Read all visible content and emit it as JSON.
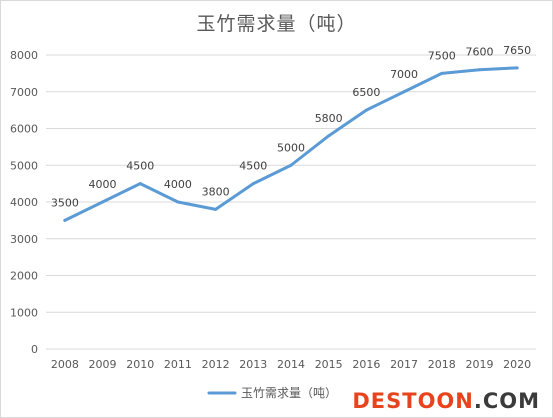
{
  "chart_data": {
    "type": "line",
    "title": "玉竹需求量（吨）",
    "categories": [
      "2008",
      "2009",
      "2010",
      "2011",
      "2012",
      "2013",
      "2014",
      "2015",
      "2016",
      "2017",
      "2018",
      "2019",
      "2020"
    ],
    "series": [
      {
        "name": "玉竹需求量（吨）",
        "values": [
          3500,
          4000,
          4500,
          4000,
          3800,
          4500,
          5000,
          5800,
          6500,
          7000,
          7500,
          7600,
          7650
        ],
        "color": "#5b9bd5"
      }
    ],
    "data_labels": [
      "3500",
      "4000",
      "4500",
      "4000",
      "3800",
      "4500",
      "5000",
      "5800",
      "6500",
      "7000",
      "7500",
      "7600",
      "7650"
    ],
    "y_ticks": [
      "0",
      "1000",
      "2000",
      "3000",
      "4000",
      "5000",
      "6000",
      "7000",
      "8000"
    ],
    "ylim": [
      0,
      8000
    ],
    "grid": true,
    "legend_position": "bottom"
  },
  "watermark": {
    "brand": "DESTOON",
    "suffix": ".COM"
  }
}
